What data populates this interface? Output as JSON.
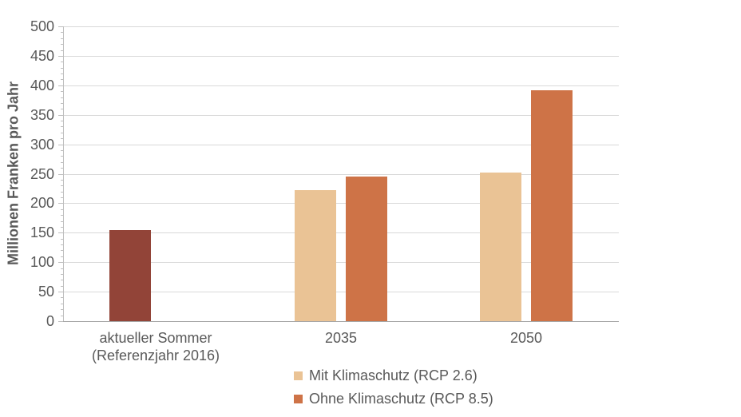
{
  "chart_data": {
    "type": "bar",
    "title": "",
    "xlabel": "",
    "ylabel": "Millionen Franken pro Jahr",
    "ylim": [
      0,
      500
    ],
    "ytick_step": 50,
    "yminor_tick_step": 10,
    "yticks": [
      0,
      50,
      100,
      150,
      200,
      250,
      300,
      350,
      400,
      450,
      500
    ],
    "grid": "horizontal-only",
    "legend_position": "bottom",
    "categories": [
      {
        "label_lines": [
          "aktueller Sommer",
          "(Referenzjahr 2016)"
        ]
      },
      {
        "label_lines": [
          "2035"
        ]
      },
      {
        "label_lines": [
          "2050"
        ]
      }
    ],
    "series": [
      {
        "name": "Mit Klimaschutz (RCP 2.6)",
        "color": "#EAC395"
      },
      {
        "name": "Ohne Klimaschutz (RCP 8.5)",
        "color": "#CE7347"
      }
    ],
    "bars": [
      {
        "category": 0,
        "slot": 0,
        "value": 155,
        "color": "#924438"
      },
      {
        "category": 1,
        "slot": 0,
        "value": 222,
        "color": "#EAC395"
      },
      {
        "category": 1,
        "slot": 1,
        "value": 245,
        "color": "#CE7347"
      },
      {
        "category": 2,
        "slot": 0,
        "value": 252,
        "color": "#EAC395"
      },
      {
        "category": 2,
        "slot": 1,
        "value": 392,
        "color": "#CE7347"
      }
    ],
    "colors": {
      "reference_bar": "#924438",
      "mit_klimaschutz": "#EAC395",
      "ohne_klimaschutz": "#CE7347",
      "gridline": "#D9D9D9",
      "axis": "#BFBFBF",
      "baseline": "#A6A6A6",
      "text": "#595959"
    }
  }
}
